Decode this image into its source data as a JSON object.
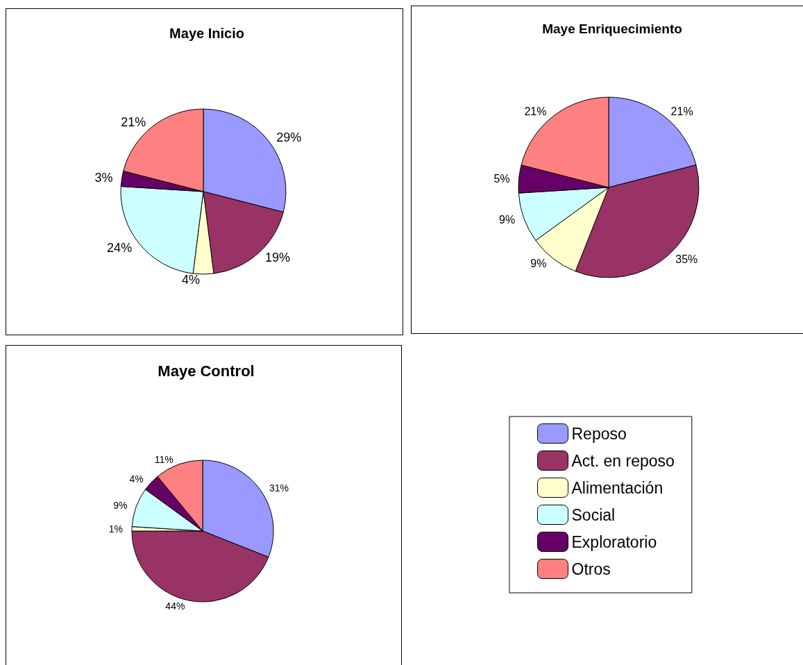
{
  "chart_data": [
    {
      "type": "pie",
      "title": "Maye Inicio",
      "categories": [
        null,
        null,
        null,
        null,
        null,
        null
      ],
      "values": [
        29,
        19,
        4,
        24,
        3,
        21
      ],
      "value_labels": [
        "29%",
        "19%",
        "4%",
        "24%",
        "3%",
        "21%"
      ],
      "colors": [
        "#9999ff",
        "#993366",
        "#ffffcc",
        "#ccffff",
        "#660066",
        "#ff8080"
      ],
      "legend": false
    },
    {
      "type": "pie",
      "title": "Maye Enriquecimiento",
      "categories": [
        null,
        null,
        null,
        null,
        null,
        null
      ],
      "values": [
        21,
        35,
        9,
        9,
        5,
        21
      ],
      "value_labels": [
        "21%",
        "35%",
        "9%",
        "9%",
        "5%",
        "21%"
      ],
      "colors": [
        "#9999ff",
        "#993366",
        "#ffffcc",
        "#ccffff",
        "#660066",
        "#ff8080"
      ],
      "legend": false
    },
    {
      "type": "pie",
      "title": "Maye Control",
      "categories": [
        "Reposo",
        "Act. en reposo",
        "Alimentación",
        "Social",
        "Exploratorio",
        "Otros"
      ],
      "values": [
        31,
        44,
        1,
        9,
        4,
        11
      ],
      "value_labels": [
        "31%",
        "44%",
        "1%",
        "9%",
        "4%",
        "11%"
      ],
      "colors": [
        "#9999ff",
        "#993366",
        "#ffffcc",
        "#ccffff",
        "#660066",
        "#ff8080"
      ],
      "legend": "right"
    }
  ]
}
